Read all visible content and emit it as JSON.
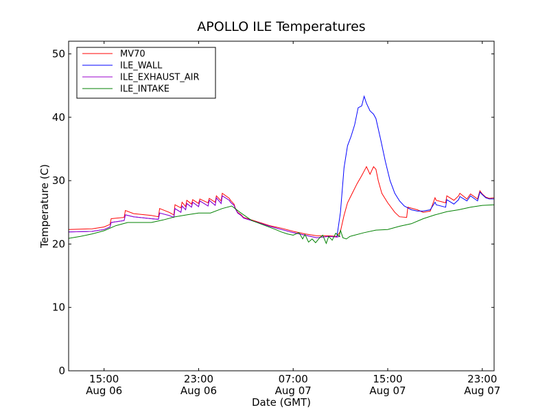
{
  "chart_data": {
    "type": "line",
    "title": "APOLLO ILE Temperatures",
    "xlabel": "Date (GMT)",
    "ylabel": "Temperature (C)",
    "xlim": [
      12.0,
      48.0
    ],
    "ylim": [
      0,
      52
    ],
    "yticks": [
      0,
      10,
      20,
      30,
      40,
      50
    ],
    "xticks": [
      {
        "value": 15,
        "time": "15:00",
        "date": "Aug 06"
      },
      {
        "value": 23,
        "time": "23:00",
        "date": "Aug 06"
      },
      {
        "value": 31,
        "time": "07:00",
        "date": "Aug 07"
      },
      {
        "value": 39,
        "time": "15:00",
        "date": "Aug 07"
      },
      {
        "value": 47,
        "time": "23:00",
        "date": "Aug 07"
      }
    ],
    "legend_position": "top-left",
    "series": [
      {
        "name": "MV70",
        "color": "#ff0000",
        "x": [
          12.0,
          14.0,
          15.0,
          15.5,
          15.6,
          16.7,
          16.8,
          17.5,
          19.0,
          19.6,
          19.7,
          20.5,
          20.9,
          21.0,
          21.5,
          21.6,
          21.9,
          22.0,
          22.4,
          22.5,
          23.0,
          23.1,
          23.8,
          23.9,
          24.4,
          24.5,
          24.9,
          25.0,
          25.6,
          25.7,
          26.0,
          26.1,
          26.3,
          26.6,
          26.8,
          28.0,
          29.0,
          30.0,
          31.0,
          32.0,
          33.0,
          34.0,
          34.7,
          35.0,
          35.3,
          35.6,
          36.0,
          36.4,
          36.8,
          37.0,
          37.2,
          37.5,
          37.8,
          38.0,
          38.2,
          38.5,
          39.0,
          39.6,
          40.0,
          40.6,
          40.7,
          41.5,
          42.0,
          42.6,
          43.0,
          43.1,
          43.9,
          44.0,
          44.6,
          45.0,
          45.1,
          45.7,
          46.0,
          46.6,
          46.8,
          47.0,
          47.3,
          47.6,
          48.0
        ],
        "values": [
          22.3,
          22.4,
          22.7,
          23.1,
          24.0,
          24.2,
          25.3,
          24.8,
          24.5,
          24.3,
          25.6,
          25.0,
          24.6,
          26.2,
          25.7,
          26.6,
          25.9,
          26.9,
          26.3,
          27.0,
          26.4,
          27.1,
          26.5,
          27.2,
          26.6,
          27.6,
          26.8,
          28.0,
          27.2,
          26.9,
          26.3,
          25.7,
          25.0,
          24.6,
          24.2,
          23.5,
          22.9,
          22.5,
          22.0,
          21.6,
          21.3,
          21.3,
          21.2,
          22.0,
          24.5,
          26.5,
          28.0,
          29.5,
          30.8,
          31.5,
          32.2,
          31.0,
          32.2,
          31.8,
          30.0,
          28.0,
          26.5,
          25.0,
          24.3,
          24.2,
          25.8,
          25.4,
          25.0,
          25.2,
          27.3,
          26.9,
          26.5,
          27.6,
          26.9,
          27.6,
          28.0,
          27.1,
          27.9,
          27.1,
          28.4,
          27.9,
          27.4,
          27.2,
          27.3
        ]
      },
      {
        "name": "ILE_WALL",
        "color": "#0000ff",
        "x": [
          12.0,
          14.0,
          15.0,
          15.5,
          15.6,
          16.7,
          16.8,
          17.5,
          19.0,
          19.6,
          19.7,
          20.5,
          20.9,
          21.0,
          21.5,
          21.6,
          21.9,
          22.0,
          22.4,
          22.5,
          23.0,
          23.1,
          23.8,
          23.9,
          24.4,
          24.5,
          24.9,
          25.0,
          25.6,
          25.7,
          26.0,
          26.1,
          26.3,
          26.6,
          26.8,
          28.0,
          29.0,
          30.0,
          31.0,
          32.0,
          33.0,
          34.0,
          34.7,
          35.0,
          35.3,
          35.6,
          35.9,
          36.2,
          36.5,
          36.8,
          37.0,
          37.2,
          37.5,
          37.8,
          38.0,
          38.4,
          38.8,
          39.2,
          39.6,
          40.0,
          40.4,
          40.8,
          41.0,
          41.5,
          42.0,
          42.6,
          43.0,
          43.1,
          43.9,
          44.0,
          44.6,
          45.0,
          45.1,
          45.7,
          46.0,
          46.6,
          46.8,
          47.0,
          47.3,
          47.6,
          48.0
        ],
        "values": [
          21.9,
          22.0,
          22.3,
          22.7,
          23.4,
          23.7,
          24.6,
          24.3,
          24.0,
          23.9,
          24.9,
          24.5,
          24.2,
          25.6,
          25.0,
          26.0,
          25.4,
          26.4,
          25.8,
          26.6,
          25.9,
          26.8,
          26.0,
          26.9,
          26.1,
          27.3,
          26.4,
          27.6,
          26.9,
          26.6,
          26.1,
          25.6,
          24.9,
          24.5,
          24.1,
          23.4,
          22.8,
          22.3,
          21.8,
          21.4,
          21.0,
          21.2,
          21.1,
          25.0,
          32.0,
          35.5,
          37.0,
          38.8,
          41.5,
          41.8,
          43.3,
          42.2,
          41.0,
          40.5,
          39.8,
          36.5,
          33.0,
          30.0,
          28.0,
          26.8,
          26.0,
          25.6,
          25.4,
          25.2,
          25.2,
          25.4,
          26.6,
          26.2,
          25.8,
          27.0,
          26.3,
          27.0,
          27.5,
          26.8,
          27.6,
          26.8,
          28.2,
          27.8,
          27.3,
          27.1,
          27.1
        ]
      },
      {
        "name": "ILE_EXHAUST_AIR",
        "color": "#9900cc",
        "x": [
          12.0,
          14.0,
          15.0,
          15.5,
          15.6,
          16.7,
          16.8,
          17.5,
          19.0,
          19.6,
          19.7,
          20.5,
          20.9,
          21.0,
          21.5,
          21.6,
          21.9,
          22.0,
          22.4,
          22.5,
          23.0,
          23.1,
          23.8,
          23.9,
          24.4,
          24.5,
          24.9,
          25.0,
          25.6,
          25.7,
          26.0,
          26.1,
          26.3,
          26.6,
          26.8,
          28.0,
          29.0,
          30.0,
          31.0,
          32.0,
          33.0,
          34.0,
          34.7,
          35.0
        ],
        "values": [
          21.9,
          22.0,
          22.3,
          22.7,
          23.4,
          23.7,
          24.6,
          24.3,
          24.0,
          23.9,
          24.9,
          24.5,
          24.2,
          25.6,
          25.0,
          26.0,
          25.4,
          26.4,
          25.8,
          26.6,
          25.9,
          26.8,
          26.0,
          26.9,
          26.1,
          27.3,
          26.4,
          27.6,
          26.9,
          26.6,
          26.1,
          25.6,
          24.9,
          24.5,
          24.1,
          23.4,
          22.8,
          22.3,
          21.8,
          21.4,
          21.0,
          21.2,
          21.1,
          21.2
        ]
      },
      {
        "name": "ILE_INTAKE",
        "color": "#008000",
        "x": [
          12.0,
          13.0,
          14.0,
          15.0,
          16.0,
          17.0,
          18.0,
          19.0,
          20.0,
          21.0,
          22.0,
          23.0,
          24.0,
          25.0,
          25.8,
          26.5,
          27.5,
          28.5,
          29.5,
          30.0,
          30.5,
          31.0,
          31.5,
          31.8,
          32.0,
          32.3,
          32.6,
          32.9,
          33.2,
          33.5,
          33.8,
          34.0,
          34.3,
          34.6,
          34.9,
          35.0,
          35.2,
          35.5,
          35.8,
          36.0,
          37.0,
          38.0,
          39.0,
          40.0,
          41.0,
          42.0,
          43.0,
          44.0,
          45.0,
          46.0,
          47.0,
          48.0
        ],
        "values": [
          20.9,
          21.2,
          21.6,
          22.1,
          22.9,
          23.4,
          23.4,
          23.4,
          23.8,
          24.3,
          24.6,
          24.9,
          24.9,
          25.6,
          26.0,
          25.0,
          23.7,
          23.0,
          22.3,
          21.9,
          21.6,
          21.4,
          21.8,
          20.8,
          21.5,
          20.3,
          20.8,
          20.2,
          20.9,
          21.4,
          20.1,
          21.2,
          20.6,
          21.7,
          21.2,
          22.2,
          21.0,
          20.8,
          21.2,
          21.3,
          21.8,
          22.2,
          22.3,
          22.8,
          23.2,
          24.0,
          24.6,
          25.1,
          25.4,
          25.8,
          26.1,
          26.2
        ]
      }
    ]
  }
}
